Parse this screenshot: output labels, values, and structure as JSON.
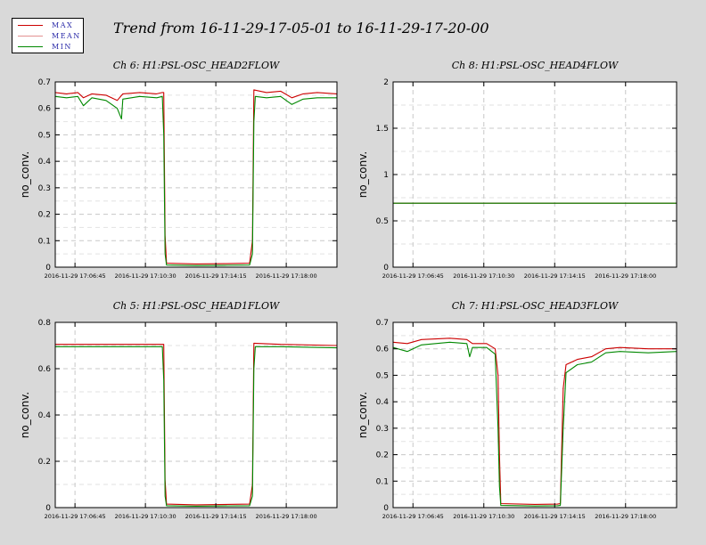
{
  "header": {
    "title": "Trend from 16-11-29-17-05-01 to 16-11-29-17-20-00"
  },
  "legend": {
    "items": [
      {
        "label": "MAX",
        "color": "#cc0000"
      },
      {
        "label": "MEAN",
        "color": "#e39090"
      },
      {
        "label": "MIN",
        "color": "#008800"
      }
    ]
  },
  "chart_data": [
    {
      "type": "line",
      "title": "Ch 6: H1:PSL-OSC_HEAD2FLOW",
      "ylabel": "no_conv.",
      "xlabel": "",
      "ylim": [
        0,
        0.7
      ],
      "yticks": [
        0,
        0.1,
        0.2,
        0.3,
        0.4,
        0.5,
        0.6,
        0.7
      ],
      "yticklabels": [
        "0",
        "0.1",
        "0.2",
        "0.3",
        "0.4",
        "0.5",
        "0.6",
        "0.7"
      ],
      "xticklabels": [
        "2016-11-29 17:06:45",
        "2016-11-29 17:10:30",
        "2016-11-29 17:14:15",
        "2016-11-29 17:18:00"
      ],
      "grid": true,
      "series": [
        {
          "name": "MAX",
          "points": [
            [
              0,
              0.66
            ],
            [
              0.04,
              0.655
            ],
            [
              0.08,
              0.66
            ],
            [
              0.1,
              0.64
            ],
            [
              0.13,
              0.655
            ],
            [
              0.18,
              0.65
            ],
            [
              0.22,
              0.63
            ],
            [
              0.24,
              0.655
            ],
            [
              0.3,
              0.66
            ],
            [
              0.36,
              0.655
            ],
            [
              0.38,
              0.66
            ],
            [
              0.385,
              0.66
            ],
            [
              0.39,
              0.12
            ],
            [
              0.395,
              0.015
            ],
            [
              0.5,
              0.012
            ],
            [
              0.6,
              0.013
            ],
            [
              0.69,
              0.015
            ],
            [
              0.7,
              0.1
            ],
            [
              0.705,
              0.67
            ],
            [
              0.75,
              0.66
            ],
            [
              0.8,
              0.665
            ],
            [
              0.84,
              0.64
            ],
            [
              0.88,
              0.655
            ],
            [
              0.93,
              0.66
            ],
            [
              1,
              0.655
            ]
          ]
        },
        {
          "name": "MIN",
          "points": [
            [
              0,
              0.645
            ],
            [
              0.04,
              0.64
            ],
            [
              0.08,
              0.645
            ],
            [
              0.1,
              0.61
            ],
            [
              0.13,
              0.64
            ],
            [
              0.18,
              0.63
            ],
            [
              0.22,
              0.6
            ],
            [
              0.235,
              0.56
            ],
            [
              0.24,
              0.635
            ],
            [
              0.3,
              0.645
            ],
            [
              0.36,
              0.64
            ],
            [
              0.38,
              0.645
            ],
            [
              0.385,
              0.5
            ],
            [
              0.39,
              0.05
            ],
            [
              0.395,
              0.008
            ],
            [
              0.5,
              0.006
            ],
            [
              0.6,
              0.007
            ],
            [
              0.69,
              0.008
            ],
            [
              0.7,
              0.05
            ],
            [
              0.705,
              0.55
            ],
            [
              0.71,
              0.645
            ],
            [
              0.75,
              0.64
            ],
            [
              0.8,
              0.645
            ],
            [
              0.84,
              0.615
            ],
            [
              0.88,
              0.635
            ],
            [
              0.93,
              0.64
            ],
            [
              1,
              0.64
            ]
          ]
        }
      ]
    },
    {
      "type": "line",
      "title": "Ch 8: H1:PSL-OSC_HEAD4FLOW",
      "ylabel": "no_conv.",
      "xlabel": "",
      "ylim": [
        0,
        2
      ],
      "yticks": [
        0,
        0.5,
        1,
        1.5,
        2
      ],
      "yticklabels": [
        "0",
        "0.5",
        "1",
        "1.5",
        "2"
      ],
      "xticklabels": [
        "2016-11-29 17:06:45",
        "2016-11-29 17:10:30",
        "2016-11-29 17:14:15",
        "2016-11-29 17:18:00"
      ],
      "grid": true,
      "series": [
        {
          "name": "MAX",
          "points": [
            [
              0,
              0.69
            ],
            [
              1,
              0.69
            ]
          ]
        },
        {
          "name": "MIN",
          "points": [
            [
              0,
              0.69
            ],
            [
              1,
              0.69
            ]
          ]
        }
      ]
    },
    {
      "type": "line",
      "title": "Ch 5: H1:PSL-OSC_HEAD1FLOW",
      "ylabel": "no_conv.",
      "xlabel": "",
      "ylim": [
        0,
        0.8
      ],
      "yticks": [
        0,
        0.2,
        0.4,
        0.6,
        0.8
      ],
      "yticklabels": [
        "0",
        "0.2",
        "0.4",
        "0.6",
        "0.8"
      ],
      "xticklabels": [
        "2016-11-29 17:06:45",
        "2016-11-29 17:10:30",
        "2016-11-29 17:14:15",
        "2016-11-29 17:18:00"
      ],
      "grid": true,
      "series": [
        {
          "name": "MAX",
          "points": [
            [
              0,
              0.705
            ],
            [
              0.2,
              0.705
            ],
            [
              0.38,
              0.705
            ],
            [
              0.385,
              0.705
            ],
            [
              0.39,
              0.12
            ],
            [
              0.395,
              0.015
            ],
            [
              0.5,
              0.012
            ],
            [
              0.69,
              0.015
            ],
            [
              0.7,
              0.1
            ],
            [
              0.705,
              0.71
            ],
            [
              0.8,
              0.705
            ],
            [
              1,
              0.7
            ]
          ]
        },
        {
          "name": "MIN",
          "points": [
            [
              0,
              0.695
            ],
            [
              0.2,
              0.695
            ],
            [
              0.38,
              0.695
            ],
            [
              0.385,
              0.55
            ],
            [
              0.39,
              0.05
            ],
            [
              0.395,
              0.008
            ],
            [
              0.5,
              0.006
            ],
            [
              0.69,
              0.008
            ],
            [
              0.7,
              0.05
            ],
            [
              0.705,
              0.6
            ],
            [
              0.71,
              0.695
            ],
            [
              0.8,
              0.695
            ],
            [
              1,
              0.69
            ]
          ]
        }
      ]
    },
    {
      "type": "line",
      "title": "Ch 7: H1:PSL-OSC_HEAD3FLOW",
      "ylabel": "no_conv.",
      "xlabel": "",
      "ylim": [
        0,
        0.7
      ],
      "yticks": [
        0,
        0.1,
        0.2,
        0.3,
        0.4,
        0.5,
        0.6,
        0.7
      ],
      "yticklabels": [
        "0",
        "0.1",
        "0.2",
        "0.3",
        "0.4",
        "0.5",
        "0.6",
        "0.7"
      ],
      "xticklabels": [
        "2016-11-29 17:06:45",
        "2016-11-29 17:10:30",
        "2016-11-29 17:14:15",
        "2016-11-29 17:18:00"
      ],
      "grid": true,
      "series": [
        {
          "name": "MAX",
          "points": [
            [
              0,
              0.625
            ],
            [
              0.05,
              0.62
            ],
            [
              0.1,
              0.635
            ],
            [
              0.2,
              0.64
            ],
            [
              0.26,
              0.635
            ],
            [
              0.28,
              0.62
            ],
            [
              0.33,
              0.62
            ],
            [
              0.36,
              0.6
            ],
            [
              0.37,
              0.5
            ],
            [
              0.375,
              0.2
            ],
            [
              0.38,
              0.015
            ],
            [
              0.5,
              0.012
            ],
            [
              0.58,
              0.013
            ],
            [
              0.59,
              0.015
            ],
            [
              0.6,
              0.45
            ],
            [
              0.61,
              0.54
            ],
            [
              0.65,
              0.56
            ],
            [
              0.7,
              0.57
            ],
            [
              0.75,
              0.6
            ],
            [
              0.8,
              0.605
            ],
            [
              0.9,
              0.6
            ],
            [
              1,
              0.6
            ]
          ]
        },
        {
          "name": "MIN",
          "points": [
            [
              0,
              0.605
            ],
            [
              0.05,
              0.59
            ],
            [
              0.1,
              0.615
            ],
            [
              0.2,
              0.625
            ],
            [
              0.26,
              0.62
            ],
            [
              0.27,
              0.57
            ],
            [
              0.28,
              0.605
            ],
            [
              0.33,
              0.605
            ],
            [
              0.36,
              0.58
            ],
            [
              0.37,
              0.3
            ],
            [
              0.375,
              0.08
            ],
            [
              0.38,
              0.008
            ],
            [
              0.5,
              0.006
            ],
            [
              0.58,
              0.007
            ],
            [
              0.59,
              0.008
            ],
            [
              0.6,
              0.3
            ],
            [
              0.61,
              0.51
            ],
            [
              0.65,
              0.54
            ],
            [
              0.7,
              0.55
            ],
            [
              0.75,
              0.585
            ],
            [
              0.8,
              0.59
            ],
            [
              0.9,
              0.585
            ],
            [
              1,
              0.59
            ]
          ]
        }
      ]
    }
  ]
}
